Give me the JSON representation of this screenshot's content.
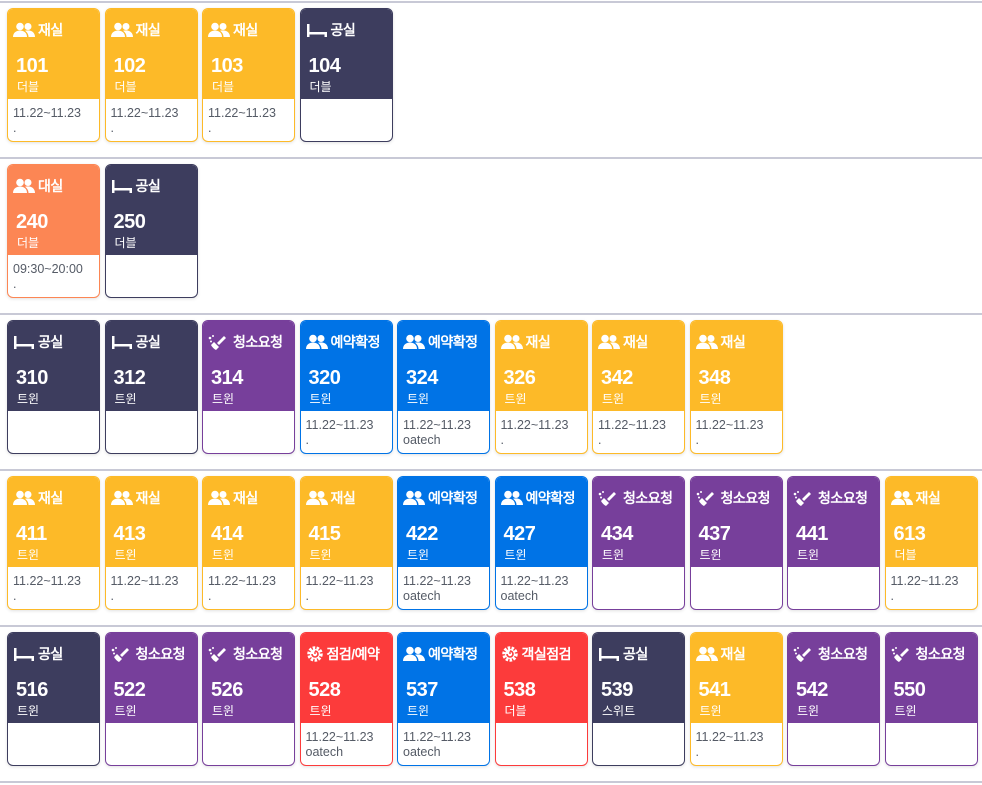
{
  "statuses": {
    "occupied": {
      "color": "#fdba28",
      "icon": "people-icon"
    },
    "vacant": {
      "color": "#3d3d5e",
      "icon": "bed-icon"
    },
    "cleaning": {
      "color": "#773f9b",
      "icon": "broom-icon"
    },
    "reserved": {
      "color": "#0073e6",
      "icon": "people-icon"
    },
    "inspection": {
      "color": "#fc3b3b",
      "icon": "gear-icon"
    },
    "daytime": {
      "color": "#fc8654",
      "icon": "people-icon"
    }
  },
  "floors": [
    [
      {
        "kind": "occupied",
        "status": "재실",
        "number": "101",
        "type": "더블",
        "dates": "11.22~11.23",
        "note": "."
      },
      {
        "kind": "occupied",
        "status": "재실",
        "number": "102",
        "type": "더블",
        "dates": "11.22~11.23",
        "note": "."
      },
      {
        "kind": "occupied",
        "status": "재실",
        "number": "103",
        "type": "더블",
        "dates": "11.22~11.23",
        "note": "."
      },
      {
        "kind": "vacant",
        "status": "공실",
        "number": "104",
        "type": "더블"
      }
    ],
    [
      {
        "kind": "daytime",
        "status": "대실",
        "number": "240",
        "type": "더블",
        "dates": "09:30~20:00",
        "note": "."
      },
      {
        "kind": "vacant",
        "status": "공실",
        "number": "250",
        "type": "더블"
      }
    ],
    [
      {
        "kind": "vacant",
        "status": "공실",
        "number": "310",
        "type": "트윈"
      },
      {
        "kind": "vacant",
        "status": "공실",
        "number": "312",
        "type": "트윈"
      },
      {
        "kind": "cleaning",
        "status": "청소요청",
        "number": "314",
        "type": "트윈"
      },
      {
        "kind": "reserved",
        "status": "예약확정",
        "number": "320",
        "type": "트윈",
        "dates": "11.22~11.23",
        "note": "."
      },
      {
        "kind": "reserved",
        "status": "예약확정",
        "number": "324",
        "type": "트윈",
        "dates": "11.22~11.23",
        "note": "oatech"
      },
      {
        "kind": "occupied",
        "status": "재실",
        "number": "326",
        "type": "트윈",
        "dates": "11.22~11.23",
        "note": "."
      },
      {
        "kind": "occupied",
        "status": "재실",
        "number": "342",
        "type": "트윈",
        "dates": "11.22~11.23",
        "note": "."
      },
      {
        "kind": "occupied",
        "status": "재실",
        "number": "348",
        "type": "트윈",
        "dates": "11.22~11.23",
        "note": "."
      }
    ],
    [
      {
        "kind": "occupied",
        "status": "재실",
        "number": "411",
        "type": "트윈",
        "dates": "11.22~11.23",
        "note": "."
      },
      {
        "kind": "occupied",
        "status": "재실",
        "number": "413",
        "type": "트윈",
        "dates": "11.22~11.23",
        "note": "."
      },
      {
        "kind": "occupied",
        "status": "재실",
        "number": "414",
        "type": "트윈",
        "dates": "11.22~11.23",
        "note": "."
      },
      {
        "kind": "occupied",
        "status": "재실",
        "number": "415",
        "type": "트윈",
        "dates": "11.22~11.23",
        "note": "."
      },
      {
        "kind": "reserved",
        "status": "예약확정",
        "number": "422",
        "type": "트윈",
        "dates": "11.22~11.23",
        "note": "oatech"
      },
      {
        "kind": "reserved",
        "status": "예약확정",
        "number": "427",
        "type": "트윈",
        "dates": "11.22~11.23",
        "note": "oatech"
      },
      {
        "kind": "cleaning",
        "status": "청소요청",
        "number": "434",
        "type": "트윈"
      },
      {
        "kind": "cleaning",
        "status": "청소요청",
        "number": "437",
        "type": "트윈"
      },
      {
        "kind": "cleaning",
        "status": "청소요청",
        "number": "441",
        "type": "트윈"
      },
      {
        "kind": "occupied",
        "status": "재실",
        "number": "613",
        "type": "더블",
        "dates": "11.22~11.23",
        "note": "."
      }
    ],
    [
      {
        "kind": "vacant",
        "status": "공실",
        "number": "516",
        "type": "트윈"
      },
      {
        "kind": "cleaning",
        "status": "청소요청",
        "number": "522",
        "type": "트윈"
      },
      {
        "kind": "cleaning",
        "status": "청소요청",
        "number": "526",
        "type": "트윈"
      },
      {
        "kind": "inspection",
        "status": "점검/예약",
        "number": "528",
        "type": "트윈",
        "dates": "11.22~11.23",
        "note": "oatech"
      },
      {
        "kind": "reserved",
        "status": "예약확정",
        "number": "537",
        "type": "트윈",
        "dates": "11.22~11.23",
        "note": "oatech"
      },
      {
        "kind": "inspection",
        "status": "객실점검",
        "number": "538",
        "type": "더블"
      },
      {
        "kind": "vacant",
        "status": "공실",
        "number": "539",
        "type": "스위트"
      },
      {
        "kind": "occupied",
        "status": "재실",
        "number": "541",
        "type": "트윈",
        "dates": "11.22~11.23",
        "note": "."
      },
      {
        "kind": "cleaning",
        "status": "청소요청",
        "number": "542",
        "type": "트윈"
      },
      {
        "kind": "cleaning",
        "status": "청소요청",
        "number": "550",
        "type": "트윈"
      }
    ]
  ]
}
